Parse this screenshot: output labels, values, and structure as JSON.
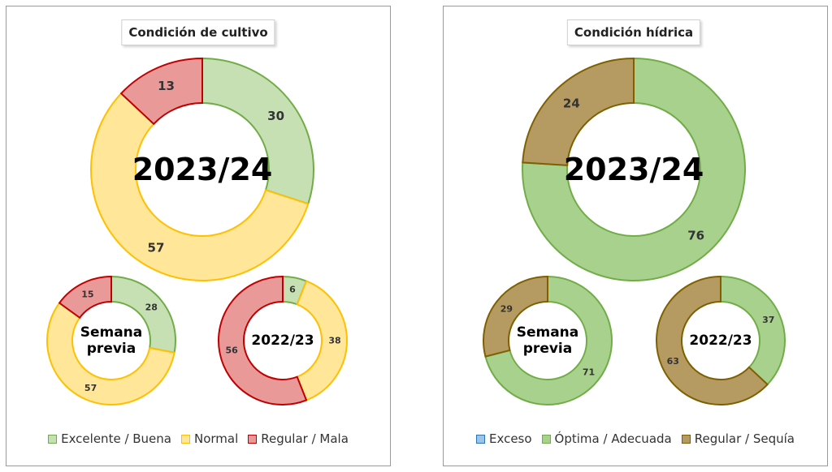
{
  "colors": {
    "excelente_buena": {
      "fill": "#c6e0b4",
      "stroke": "#70ad47"
    },
    "normal": {
      "fill": "#ffe699",
      "stroke": "#ffc000"
    },
    "regular_mala": {
      "fill": "#ea9999",
      "stroke": "#c00000"
    },
    "exceso": {
      "fill": "#9dc3e6",
      "stroke": "#2e75b6"
    },
    "optima_adecuada": {
      "fill": "#a9d18e",
      "stroke": "#70ad47"
    },
    "regular_sequia": {
      "fill": "#b59a62",
      "stroke": "#7f6000"
    }
  },
  "chart_data": [
    {
      "type": "pie",
      "title": "Condición  de cultivo",
      "legend": [
        "Excelente / Buena",
        "Normal",
        "Regular / Mala"
      ],
      "legend_position": "bottom",
      "donuts": [
        {
          "label": "2023/24",
          "values": [
            30,
            57,
            13
          ]
        },
        {
          "label": "Semana previa",
          "label_lines": [
            "Semana",
            "previa"
          ],
          "values": [
            28,
            57,
            15
          ]
        },
        {
          "label": "2022/23",
          "values": [
            6,
            38,
            56
          ]
        }
      ]
    },
    {
      "type": "pie",
      "title": "Condición  hídrica",
      "legend": [
        "Exceso",
        "Óptima / Adecuada",
        "Regular / Sequía"
      ],
      "legend_position": "bottom",
      "donuts": [
        {
          "label": "2023/24",
          "values": [
            0,
            76,
            24
          ]
        },
        {
          "label": "Semana previa",
          "label_lines": [
            "Semana",
            "previa"
          ],
          "values": [
            0,
            71,
            29
          ]
        },
        {
          "label": "2022/23",
          "values": [
            0,
            37,
            63
          ]
        }
      ]
    }
  ]
}
